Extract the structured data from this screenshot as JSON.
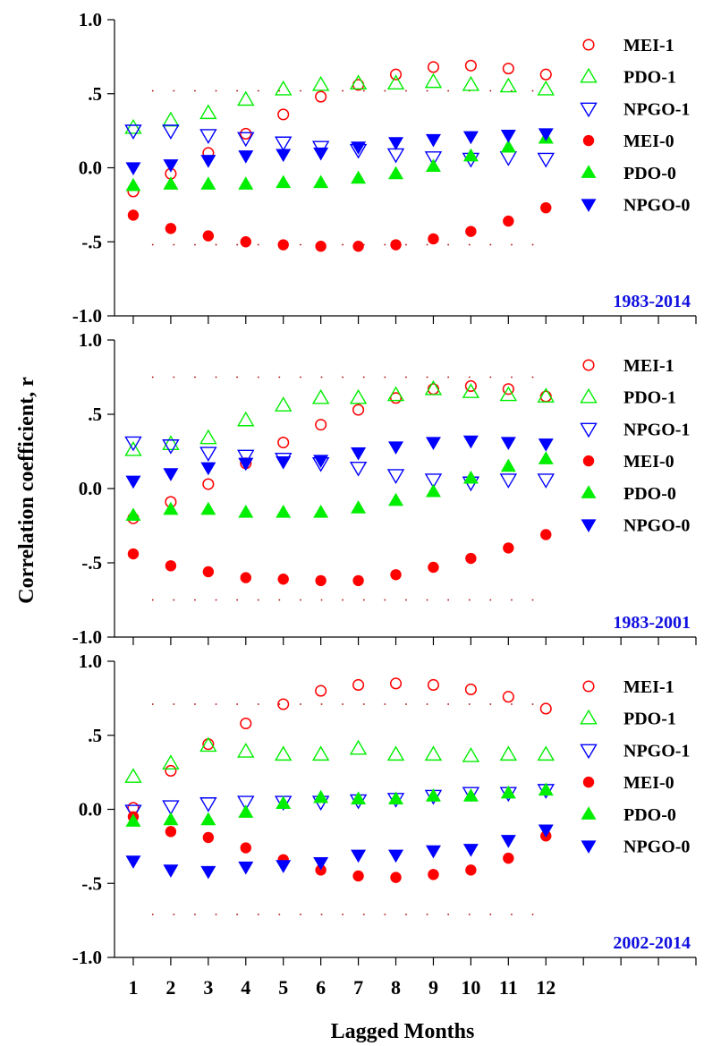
{
  "ylabel": "Correlation coefficient, r",
  "xlabel": "Lagged Months",
  "x_ticks": [
    "1",
    "2",
    "3",
    "4",
    "5",
    "6",
    "7",
    "8",
    "9",
    "10",
    "11",
    "12"
  ],
  "y_ticks": [
    "-1.0",
    "-.5",
    "0.0",
    ".5",
    "1.0"
  ],
  "colors": {
    "mei": "#ff0000",
    "pdo": "#00ee00",
    "npgo": "#0000ff",
    "period": "#1010e0",
    "sig_line": "#aa0000"
  },
  "chart_data": [
    {
      "type": "scatter",
      "period_label": "1983-2014",
      "ylim": [
        -1.0,
        1.0
      ],
      "xlim": [
        0.5,
        16
      ],
      "significance_levels": [
        0.52,
        -0.52
      ],
      "x": [
        1,
        2,
        3,
        4,
        5,
        6,
        7,
        8,
        9,
        10,
        11,
        12
      ],
      "series": [
        {
          "name": "MEI-1",
          "marker": "circle-open",
          "color": "#ff0000",
          "values": [
            -0.16,
            -0.04,
            0.1,
            0.23,
            0.36,
            0.48,
            0.56,
            0.63,
            0.68,
            0.69,
            0.67,
            0.63
          ]
        },
        {
          "name": "PDO-1",
          "marker": "triangle-open",
          "color": "#00ee00",
          "values": [
            0.27,
            0.32,
            0.37,
            0.46,
            0.53,
            0.56,
            0.57,
            0.57,
            0.58,
            0.56,
            0.55,
            0.53
          ]
        },
        {
          "name": "NPGO-1",
          "marker": "tri-down-open",
          "color": "#0000ff",
          "values": [
            0.25,
            0.25,
            0.22,
            0.2,
            0.17,
            0.14,
            0.12,
            0.09,
            0.07,
            0.06,
            0.07,
            0.06
          ]
        },
        {
          "name": "MEI-0",
          "marker": "circle-filled",
          "color": "#ff0000",
          "values": [
            -0.32,
            -0.41,
            -0.46,
            -0.5,
            -0.52,
            -0.53,
            -0.53,
            -0.52,
            -0.48,
            -0.43,
            -0.36,
            -0.27
          ]
        },
        {
          "name": "PDO-0",
          "marker": "triangle-filled",
          "color": "#00ee00",
          "values": [
            -0.12,
            -0.11,
            -0.11,
            -0.11,
            -0.1,
            -0.1,
            -0.07,
            -0.04,
            0.01,
            0.08,
            0.14,
            0.2
          ]
        },
        {
          "name": "NPGO-0",
          "marker": "tri-down-filled",
          "color": "#0000ff",
          "values": [
            0.0,
            0.02,
            0.05,
            0.08,
            0.09,
            0.1,
            0.14,
            0.17,
            0.19,
            0.21,
            0.22,
            0.23
          ]
        }
      ]
    },
    {
      "type": "scatter",
      "period_label": "1983-2001",
      "ylim": [
        -1.0,
        1.0
      ],
      "xlim": [
        0.5,
        16
      ],
      "significance_levels": [
        0.75,
        -0.75
      ],
      "x": [
        1,
        2,
        3,
        4,
        5,
        6,
        7,
        8,
        9,
        10,
        11,
        12
      ],
      "series": [
        {
          "name": "MEI-1",
          "marker": "circle-open",
          "color": "#ff0000",
          "values": [
            -0.2,
            -0.09,
            0.03,
            0.17,
            0.31,
            0.43,
            0.53,
            0.61,
            0.67,
            0.69,
            0.67,
            0.62
          ]
        },
        {
          "name": "PDO-1",
          "marker": "triangle-open",
          "color": "#00ee00",
          "values": [
            0.26,
            0.3,
            0.34,
            0.46,
            0.56,
            0.61,
            0.61,
            0.63,
            0.67,
            0.65,
            0.63,
            0.62
          ]
        },
        {
          "name": "NPGO-1",
          "marker": "tri-down-open",
          "color": "#0000ff",
          "values": [
            0.31,
            0.29,
            0.24,
            0.22,
            0.2,
            0.17,
            0.14,
            0.09,
            0.06,
            0.04,
            0.06,
            0.06
          ]
        },
        {
          "name": "MEI-0",
          "marker": "circle-filled",
          "color": "#ff0000",
          "values": [
            -0.44,
            -0.52,
            -0.56,
            -0.6,
            -0.61,
            -0.62,
            -0.62,
            -0.58,
            -0.53,
            -0.47,
            -0.4,
            -0.31
          ]
        },
        {
          "name": "PDO-0",
          "marker": "triangle-filled",
          "color": "#00ee00",
          "values": [
            -0.18,
            -0.14,
            -0.14,
            -0.16,
            -0.16,
            -0.16,
            -0.13,
            -0.08,
            -0.02,
            0.07,
            0.15,
            0.2
          ]
        },
        {
          "name": "NPGO-0",
          "marker": "tri-down-filled",
          "color": "#0000ff",
          "values": [
            0.05,
            0.1,
            0.14,
            0.17,
            0.18,
            0.19,
            0.24,
            0.28,
            0.31,
            0.32,
            0.31,
            0.3
          ]
        }
      ]
    },
    {
      "type": "scatter",
      "period_label": "2002-2014",
      "ylim": [
        -1.0,
        1.0
      ],
      "xlim": [
        0.5,
        16
      ],
      "significance_levels": [
        0.71,
        -0.71
      ],
      "x": [
        1,
        2,
        3,
        4,
        5,
        6,
        7,
        8,
        9,
        10,
        11,
        12
      ],
      "series": [
        {
          "name": "MEI-1",
          "marker": "circle-open",
          "color": "#ff0000",
          "values": [
            0.01,
            0.26,
            0.44,
            0.58,
            0.71,
            0.8,
            0.84,
            0.85,
            0.84,
            0.81,
            0.76,
            0.68
          ]
        },
        {
          "name": "PDO-1",
          "marker": "triangle-open",
          "color": "#00ee00",
          "values": [
            0.22,
            0.31,
            0.43,
            0.39,
            0.37,
            0.37,
            0.41,
            0.37,
            0.37,
            0.36,
            0.37,
            0.37
          ]
        },
        {
          "name": "NPGO-1",
          "marker": "tri-down-open",
          "color": "#0000ff",
          "values": [
            -0.01,
            0.02,
            0.04,
            0.05,
            0.05,
            0.05,
            0.06,
            0.07,
            0.09,
            0.11,
            0.11,
            0.13
          ]
        },
        {
          "name": "MEI-0",
          "marker": "circle-filled",
          "color": "#ff0000",
          "values": [
            -0.05,
            -0.15,
            -0.19,
            -0.26,
            -0.34,
            -0.41,
            -0.45,
            -0.46,
            -0.44,
            -0.41,
            -0.33,
            -0.18
          ]
        },
        {
          "name": "PDO-0",
          "marker": "triangle-filled",
          "color": "#00ee00",
          "values": [
            -0.08,
            -0.07,
            -0.07,
            -0.02,
            0.04,
            0.08,
            0.07,
            0.07,
            0.09,
            0.09,
            0.11,
            0.13
          ]
        },
        {
          "name": "NPGO-0",
          "marker": "tri-down-filled",
          "color": "#0000ff",
          "values": [
            -0.35,
            -0.41,
            -0.42,
            -0.39,
            -0.38,
            -0.36,
            -0.31,
            -0.31,
            -0.28,
            -0.27,
            -0.21,
            -0.14
          ]
        }
      ]
    }
  ]
}
